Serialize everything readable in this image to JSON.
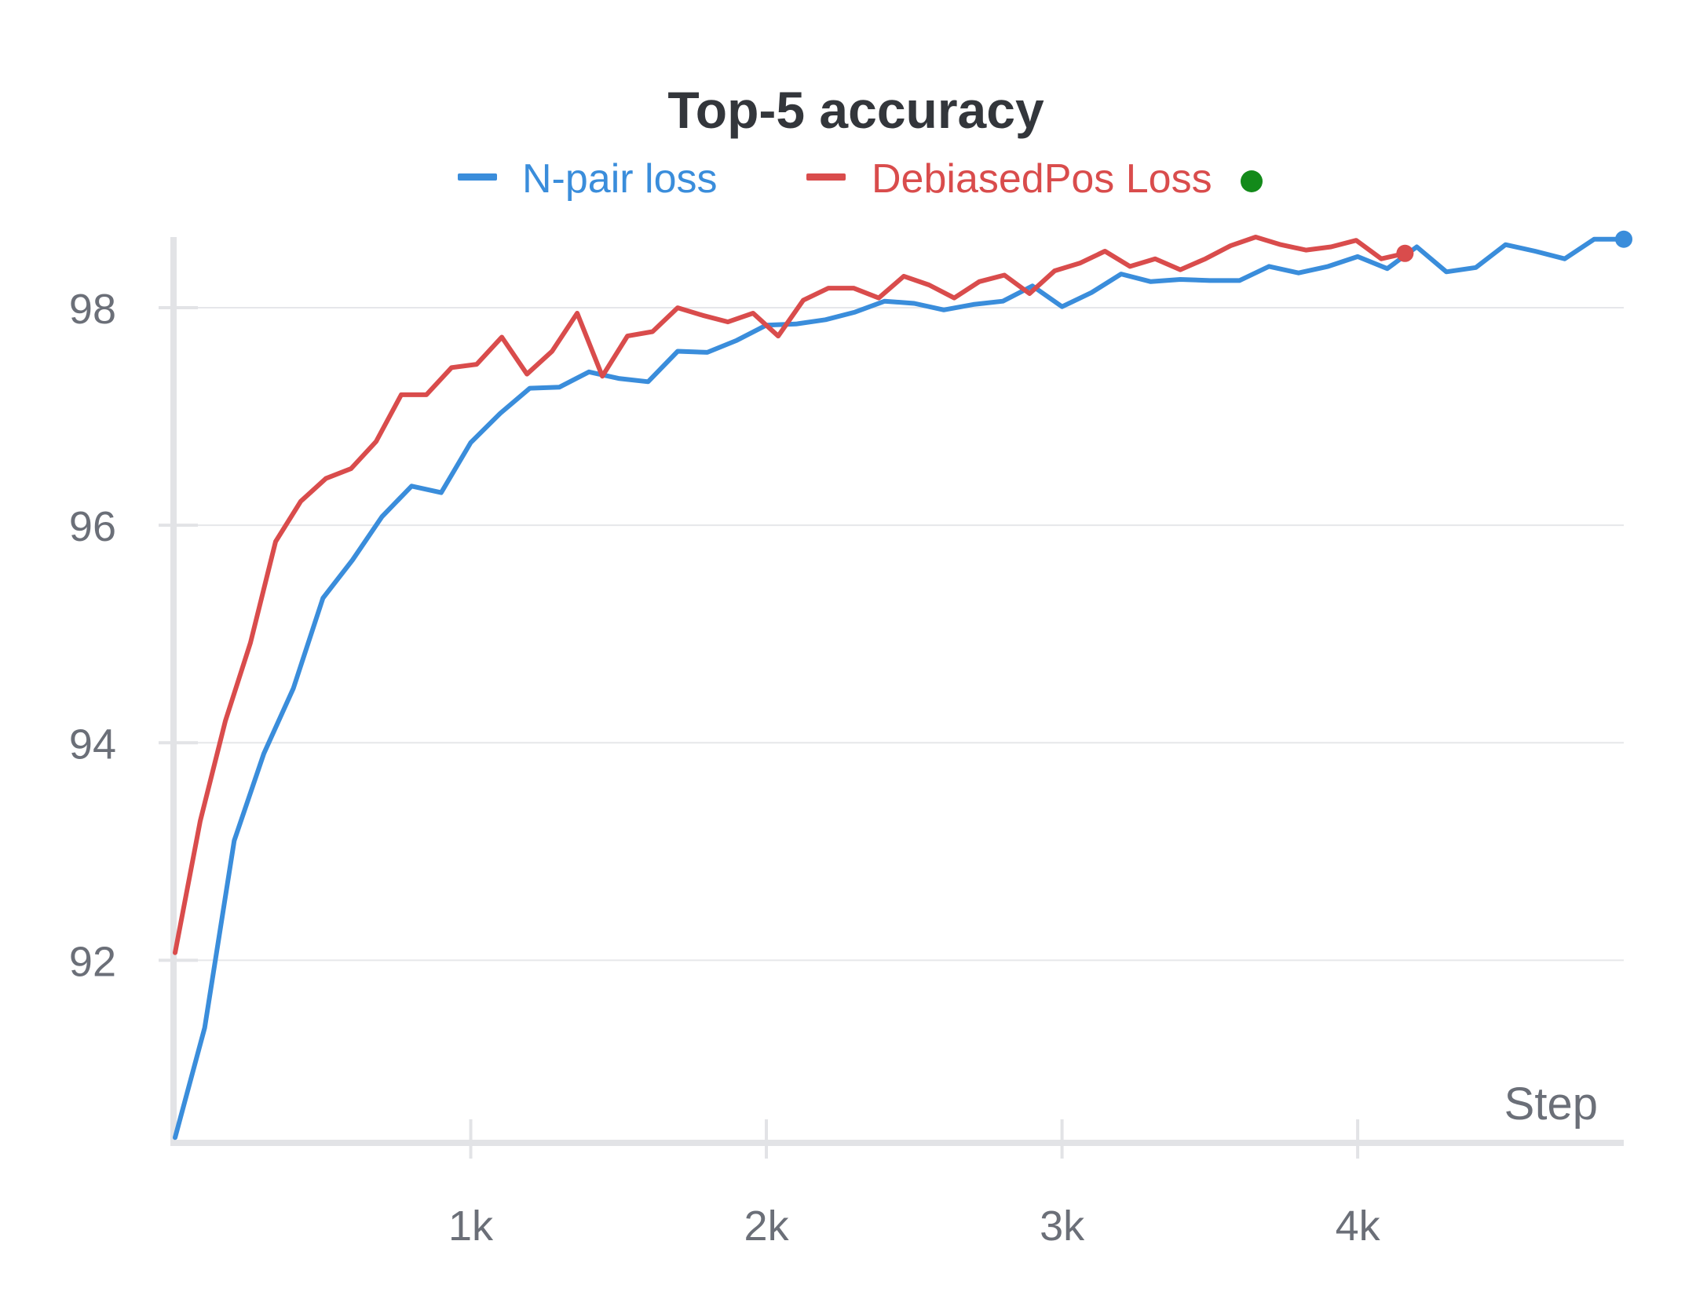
{
  "chart_data": {
    "type": "line",
    "title": "Top-5 accuracy",
    "xlabel": "Step",
    "ylabel": "",
    "xlim": [
      0,
      4900
    ],
    "ylim": [
      90.35,
      98.65
    ],
    "x_ticks": [
      {
        "value": 1000,
        "label": "1k"
      },
      {
        "value": 2000,
        "label": "2k"
      },
      {
        "value": 3000,
        "label": "3k"
      },
      {
        "value": 4000,
        "label": "4k"
      }
    ],
    "y_ticks": [
      {
        "value": 92,
        "label": "92"
      },
      {
        "value": 94,
        "label": "94"
      },
      {
        "value": 96,
        "label": "96"
      },
      {
        "value": 98,
        "label": "98"
      }
    ],
    "grid": true,
    "legend_position": "top-center",
    "series": [
      {
        "name": "N-pair loss",
        "color": "#3a8ddb",
        "points": [
          [
            0,
            90.37
          ],
          [
            100,
            91.38
          ],
          [
            200,
            93.1
          ],
          [
            300,
            93.9
          ],
          [
            400,
            94.5
          ],
          [
            500,
            95.33
          ],
          [
            600,
            95.68
          ],
          [
            700,
            96.08
          ],
          [
            800,
            96.36
          ],
          [
            900,
            96.3
          ],
          [
            1000,
            96.76
          ],
          [
            1100,
            97.03
          ],
          [
            1200,
            97.26
          ],
          [
            1300,
            97.27
          ],
          [
            1400,
            97.41
          ],
          [
            1500,
            97.35
          ],
          [
            1600,
            97.32
          ],
          [
            1700,
            97.6
          ],
          [
            1800,
            97.59
          ],
          [
            1900,
            97.7
          ],
          [
            2000,
            97.84
          ],
          [
            2100,
            97.85
          ],
          [
            2200,
            97.89
          ],
          [
            2300,
            97.96
          ],
          [
            2400,
            98.06
          ],
          [
            2500,
            98.04
          ],
          [
            2600,
            97.98
          ],
          [
            2700,
            98.03
          ],
          [
            2800,
            98.06
          ],
          [
            2900,
            98.2
          ],
          [
            3000,
            98.01
          ],
          [
            3100,
            98.14
          ],
          [
            3200,
            98.31
          ],
          [
            3300,
            98.24
          ],
          [
            3400,
            98.26
          ],
          [
            3500,
            98.25
          ],
          [
            3600,
            98.25
          ],
          [
            3700,
            98.38
          ],
          [
            3800,
            98.32
          ],
          [
            3900,
            98.38
          ],
          [
            4000,
            98.47
          ],
          [
            4100,
            98.36
          ],
          [
            4200,
            98.56
          ],
          [
            4300,
            98.33
          ],
          [
            4400,
            98.37
          ],
          [
            4500,
            98.58
          ],
          [
            4600,
            98.52
          ],
          [
            4700,
            98.45
          ],
          [
            4800,
            98.63
          ],
          [
            4900,
            98.63
          ]
        ]
      },
      {
        "name": "DebiasedPos Loss",
        "color": "#d94c4c",
        "points": [
          [
            0,
            92.07
          ],
          [
            85,
            93.28
          ],
          [
            170,
            94.2
          ],
          [
            255,
            94.92
          ],
          [
            340,
            95.85
          ],
          [
            425,
            96.22
          ],
          [
            510,
            96.43
          ],
          [
            595,
            96.52
          ],
          [
            680,
            96.77
          ],
          [
            765,
            97.2
          ],
          [
            850,
            97.2
          ],
          [
            935,
            97.45
          ],
          [
            1020,
            97.48
          ],
          [
            1105,
            97.73
          ],
          [
            1190,
            97.39
          ],
          [
            1275,
            97.6
          ],
          [
            1360,
            97.95
          ],
          [
            1445,
            97.37
          ],
          [
            1530,
            97.74
          ],
          [
            1615,
            97.78
          ],
          [
            1700,
            98.0
          ],
          [
            1785,
            97.93
          ],
          [
            1870,
            97.87
          ],
          [
            1955,
            97.95
          ],
          [
            2040,
            97.74
          ],
          [
            2125,
            98.07
          ],
          [
            2210,
            98.18
          ],
          [
            2295,
            98.18
          ],
          [
            2380,
            98.09
          ],
          [
            2465,
            98.29
          ],
          [
            2550,
            98.21
          ],
          [
            2635,
            98.09
          ],
          [
            2720,
            98.24
          ],
          [
            2805,
            98.3
          ],
          [
            2890,
            98.13
          ],
          [
            2975,
            98.34
          ],
          [
            3060,
            98.41
          ],
          [
            3145,
            98.52
          ],
          [
            3230,
            98.38
          ],
          [
            3315,
            98.45
          ],
          [
            3400,
            98.35
          ],
          [
            3485,
            98.45
          ],
          [
            3570,
            98.57
          ],
          [
            3655,
            98.65
          ],
          [
            3740,
            98.58
          ],
          [
            3825,
            98.53
          ],
          [
            3910,
            98.56
          ],
          [
            3995,
            98.62
          ],
          [
            4080,
            98.45
          ],
          [
            4160,
            98.5
          ]
        ]
      }
    ],
    "legend_status_dot_color": "#138a1a"
  }
}
